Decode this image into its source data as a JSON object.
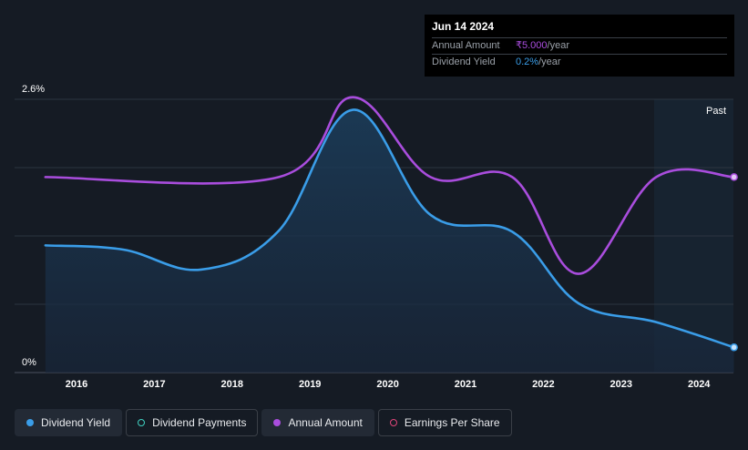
{
  "chart_data": {
    "type": "line",
    "x_tick_labels": [
      "2016",
      "2017",
      "2018",
      "2019",
      "2020",
      "2021",
      "2022",
      "2023",
      "2024"
    ],
    "y_tick_labels": [
      "2.6%",
      "0%"
    ],
    "ylim": [
      0,
      2.6
    ],
    "forecast_label": "Past",
    "grid": true,
    "legend_position": "bottom",
    "series": [
      {
        "name": "Dividend Yield",
        "color": "#3a9de8",
        "area": true,
        "points": [
          [
            2015.6,
            1.21
          ],
          [
            2016.6,
            1.17
          ],
          [
            2017.6,
            0.98
          ],
          [
            2018.6,
            1.35
          ],
          [
            2019.55,
            2.5
          ],
          [
            2020.55,
            1.5
          ],
          [
            2021.6,
            1.34
          ],
          [
            2022.45,
            0.66
          ],
          [
            2023.45,
            0.48
          ],
          [
            2024.45,
            0.24
          ]
        ]
      },
      {
        "name": "Annual Amount",
        "color": "#a94ddd",
        "area": false,
        "points": [
          [
            2015.6,
            1.86
          ],
          [
            2018.6,
            1.86
          ],
          [
            2019.55,
            2.62
          ],
          [
            2020.55,
            1.86
          ],
          [
            2021.6,
            1.86
          ],
          [
            2022.45,
            0.94
          ],
          [
            2023.45,
            1.86
          ],
          [
            2024.45,
            1.86
          ]
        ]
      }
    ]
  },
  "tooltip": {
    "date": "Jun 14 2024",
    "rows": [
      {
        "label": "Annual Amount",
        "value": "₹5.000",
        "suffix": "/year"
      },
      {
        "label": "Dividend Yield",
        "value": "0.2%",
        "suffix": "/year"
      }
    ]
  },
  "legend": [
    {
      "label": "Dividend Yield",
      "color": "#3a9de8",
      "filled": true,
      "active": true
    },
    {
      "label": "Dividend Payments",
      "color": "#3fd0c0",
      "filled": false,
      "active": false
    },
    {
      "label": "Annual Amount",
      "color": "#a94ddd",
      "filled": true,
      "active": true
    },
    {
      "label": "Earnings Per Share",
      "color": "#e0467a",
      "filled": false,
      "active": false
    }
  ]
}
